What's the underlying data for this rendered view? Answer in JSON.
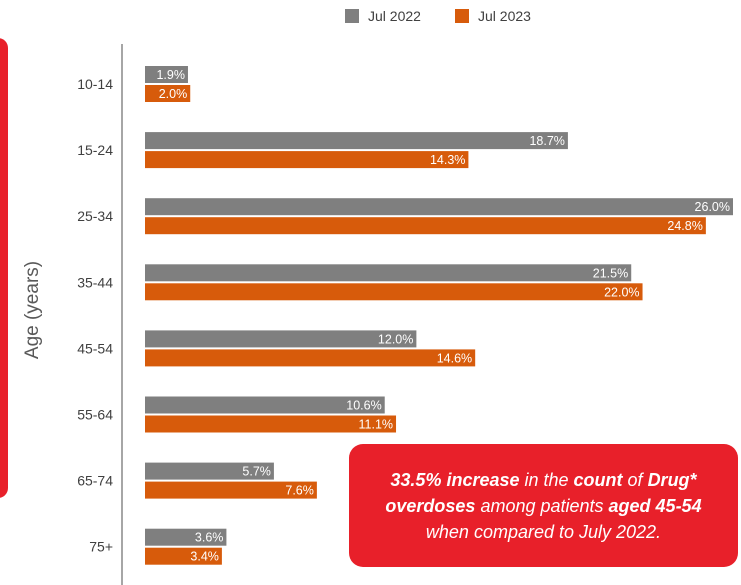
{
  "chart_data": {
    "type": "bar",
    "orientation": "horizontal",
    "categories": [
      "10-14",
      "15-24",
      "25-34",
      "35-44",
      "45-54",
      "55-64",
      "65-74",
      "75+"
    ],
    "series": [
      {
        "name": "Jul 2022",
        "values": [
          1.9,
          18.7,
          26.0,
          21.5,
          12.0,
          10.6,
          5.7,
          3.6
        ],
        "color": "#7f7f7f"
      },
      {
        "name": "Jul 2023",
        "values": [
          2.0,
          14.3,
          24.8,
          22.0,
          14.6,
          11.1,
          7.6,
          3.4
        ],
        "color": "#d75b0b"
      }
    ],
    "value_suffix": "%",
    "ylabel": "Age (years)",
    "xlim": [
      0,
      26.0
    ],
    "legend_position": "top",
    "grid": false
  },
  "callout": {
    "p1": "33.5% increase",
    "p2": " in the ",
    "p3": "count",
    "p4": " of ",
    "p5": "Drug*",
    "p6": "overdoses",
    "p7": " among patients ",
    "p8": "aged  45-54",
    "p9": "when compared to July 2022."
  },
  "colors": {
    "accent": "#e8202a",
    "axis": "#a6a6a6",
    "text": "#595959"
  }
}
